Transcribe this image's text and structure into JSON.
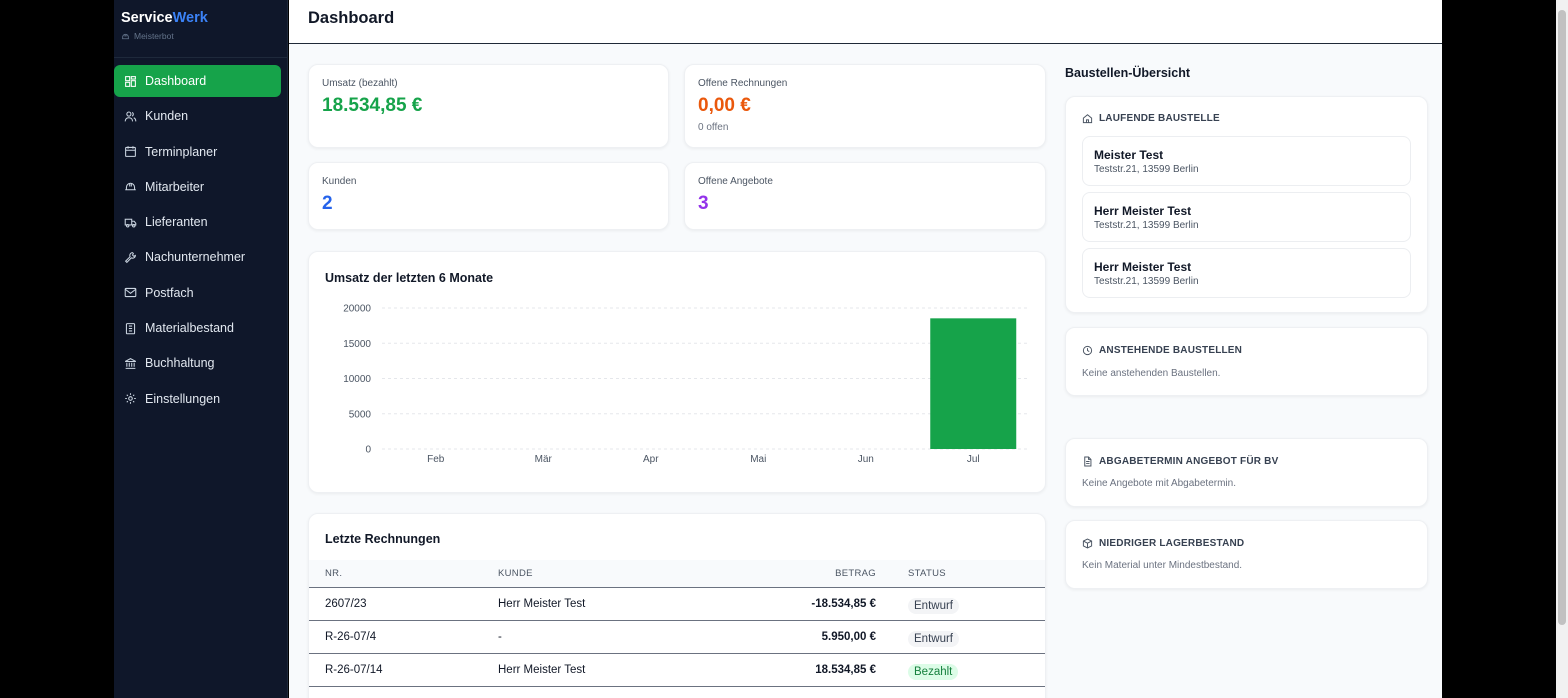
{
  "brand": {
    "name_part1": "Service",
    "name_part2": "Werk",
    "user": "Meisterbot"
  },
  "nav": [
    {
      "label": "Dashboard",
      "icon": "dashboard-icon",
      "active": true
    },
    {
      "label": "Kunden",
      "icon": "users-icon"
    },
    {
      "label": "Terminplaner",
      "icon": "calendar-icon"
    },
    {
      "label": "Mitarbeiter",
      "icon": "hardhat-icon"
    },
    {
      "label": "Lieferanten",
      "icon": "truck-icon"
    },
    {
      "label": "Nachunternehmer",
      "icon": "wrench-icon"
    },
    {
      "label": "Postfach",
      "icon": "mail-icon"
    },
    {
      "label": "Materialbestand",
      "icon": "clipboard-icon"
    },
    {
      "label": "Buchhaltung",
      "icon": "bank-icon"
    },
    {
      "label": "Einstellungen",
      "icon": "gear-icon"
    }
  ],
  "header": {
    "title": "Dashboard"
  },
  "stats": {
    "revenue": {
      "label": "Umsatz (bezahlt)",
      "value": "18.534,85 €",
      "color": "#16a34a"
    },
    "open_invoices": {
      "label": "Offene Rechnungen",
      "value": "0,00 €",
      "sub": "0 offen",
      "color": "#ea580c"
    },
    "customers": {
      "label": "Kunden",
      "value": "2",
      "color": "#2563eb"
    },
    "open_offers": {
      "label": "Offene Angebote",
      "value": "3",
      "color": "#9333ea"
    }
  },
  "chart": {
    "title": "Umsatz der letzten 6 Monate"
  },
  "chart_data": {
    "type": "bar",
    "categories": [
      "Feb",
      "Mär",
      "Apr",
      "Mai",
      "Jun",
      "Jul"
    ],
    "values": [
      0,
      0,
      0,
      0,
      0,
      18534.85
    ],
    "title": "Umsatz der letzten 6 Monate",
    "xlabel": "",
    "ylabel": "",
    "ylim": [
      0,
      20000
    ],
    "yticks": [
      0,
      5000,
      10000,
      15000,
      20000
    ],
    "grid": true,
    "color": "#16a34a"
  },
  "invoices": {
    "title": "Letzte Rechnungen",
    "columns": {
      "nr": "NR.",
      "customer": "KUNDE",
      "amount": "BETRAG",
      "status": "STATUS"
    },
    "rows": [
      {
        "nr": "2607/23",
        "customer": "Herr Meister Test",
        "amount": "-18.534,85 €",
        "status": "Entwurf"
      },
      {
        "nr": "R-26-07/4",
        "customer": "-",
        "amount": "5.950,00 €",
        "status": "Entwurf"
      },
      {
        "nr": "R-26-07/14",
        "customer": "Herr Meister Test",
        "amount": "18.534,85 €",
        "status": "Bezahlt"
      }
    ]
  },
  "sites": {
    "title": "Baustellen-Übersicht",
    "running": {
      "heading": "LAUFENDE BAUSTELLE",
      "items": [
        {
          "name": "Meister Test",
          "address": "Teststr.21, 13599 Berlin"
        },
        {
          "name": "Herr Meister Test",
          "address": "Teststr.21, 13599 Berlin"
        },
        {
          "name": "Herr Meister Test",
          "address": "Teststr.21, 13599 Berlin"
        }
      ]
    },
    "upcoming": {
      "heading": "ANSTEHENDE BAUSTELLEN",
      "empty": "Keine anstehenden Baustellen."
    },
    "deadline": {
      "heading": "ABGABETERMIN ANGEBOT FÜR BV",
      "empty": "Keine Angebote mit Abgabetermin."
    },
    "stock": {
      "heading": "NIEDRIGER LAGERBESTAND",
      "empty": "Kein Material unter Mindestbestand."
    }
  }
}
